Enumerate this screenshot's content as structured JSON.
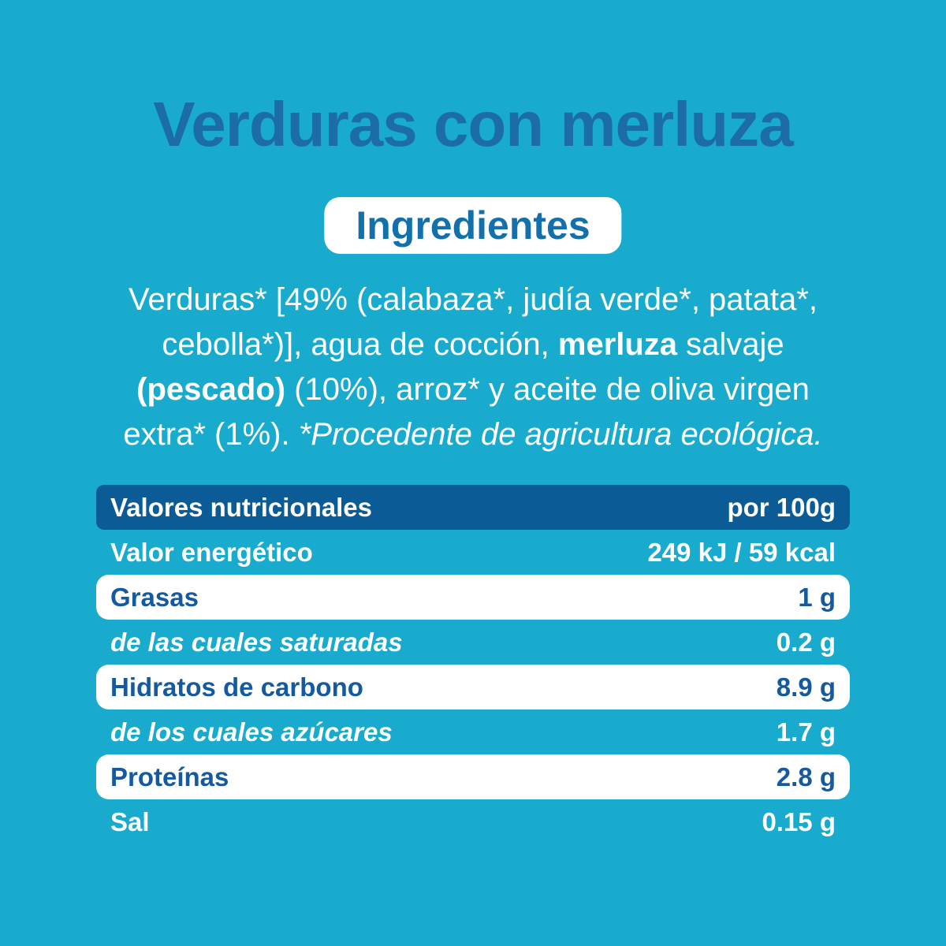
{
  "page": {
    "title": "Verduras con merluza",
    "badge_label": "Ingredientes"
  },
  "colors": {
    "background_cyan": "#19abce",
    "title_blue": "#1c6da7",
    "pill_text_blue": "#1470ab",
    "table_header_navy": "#0b5b96",
    "table_label_navy": "#15599e",
    "text_white": "#ffffff"
  },
  "ingredients": {
    "line1": {
      "s1": "Verduras* [49% (calabaza*, judía verde*, patata*,"
    },
    "line2": {
      "s1": "cebolla*)], agua de cocción, ",
      "s2": "merluza",
      "s3": " salvaje"
    },
    "line3": {
      "s1": "(pescado)",
      "s2": " (10%), arroz* y aceite de oliva virgen"
    },
    "line4": {
      "s1": "extra* (1%). ",
      "s2": "*Procedente de agricultura ecológica."
    }
  },
  "nutrition_table": {
    "header": {
      "label": "Valores nutricionales",
      "unit": "por 100g"
    },
    "rows": [
      {
        "label": "Valor energético",
        "value": "249 kJ / 59 kcal"
      },
      {
        "label": "Grasas",
        "value": "1 g"
      },
      {
        "label": "de las cuales saturadas",
        "value": "0.2 g"
      },
      {
        "label": "Hidratos de carbono",
        "value": "8.9 g"
      },
      {
        "label": "de los cuales azúcares",
        "value": "1.7 g"
      },
      {
        "label": "Proteínas",
        "value": "2.8 g"
      },
      {
        "label": "Sal",
        "value": "0.15 g"
      }
    ]
  }
}
